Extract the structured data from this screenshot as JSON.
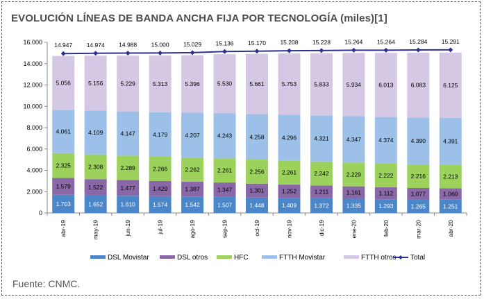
{
  "title": "EVOLUCIÓN LÍNEAS DE BANDA ANCHA FIJA POR TECNOLOGÍA (miles)[1]",
  "source": "Fuente: CNMC.",
  "chart_data": {
    "type": "bar",
    "stacked": true,
    "title": "EVOLUCIÓN LÍNEAS DE BANDA ANCHA FIJA POR TECNOLOGÍA (miles)[1]",
    "xlabel": "",
    "ylabel": "",
    "ylim": [
      0,
      16000
    ],
    "yticks": [
      0,
      2000,
      4000,
      6000,
      8000,
      10000,
      12000,
      14000,
      16000
    ],
    "ytick_labels": [
      "0",
      "2.000",
      "4.000",
      "6.000",
      "8.000",
      "10.000",
      "12.000",
      "14.000",
      "16.000"
    ],
    "grid": false,
    "legend_position": "bottom",
    "categories": [
      "abr-19",
      "may-19",
      "jun-19",
      "jul-19",
      "ago-19",
      "sep-19",
      "oct-19",
      "nov-19",
      "dic-19",
      "ene-20",
      "feb-20",
      "mar-20",
      "abr-20"
    ],
    "series": [
      {
        "name": "DSL Movistar",
        "color": "#4a86c8",
        "values": [
          1703,
          1652,
          1610,
          1574,
          1542,
          1507,
          1448,
          1409,
          1372,
          1335,
          1293,
          1265,
          1251
        ],
        "labels": [
          "1.703",
          "1.652",
          "1.610",
          "1.574",
          "1.542",
          "1.507",
          "1.448",
          "1.409",
          "1.372",
          "1.335",
          "1.293",
          "1.265",
          "1.251"
        ]
      },
      {
        "name": "DSL otros",
        "color": "#8a68a8",
        "values": [
          1579,
          1522,
          1477,
          1429,
          1387,
          1347,
          1301,
          1252,
          1211,
          1161,
          1112,
          1077,
          1060
        ],
        "labels": [
          "1.579",
          "1.522",
          "1.477",
          "1.429",
          "1.387",
          "1.347",
          "1.301",
          "1.252",
          "1.211",
          "1.161",
          "1.112",
          "1.077",
          "1.060"
        ]
      },
      {
        "name": "HFC",
        "color": "#9cd25c",
        "values": [
          2325,
          2308,
          2289,
          2266,
          2262,
          2261,
          2256,
          2261,
          2242,
          2229,
          2222,
          2216,
          2213
        ],
        "labels": [
          "2.325",
          "2.308",
          "2.289",
          "2.266",
          "2.262",
          "2.261",
          "2.256",
          "2.261",
          "2.242",
          "2.229",
          "2.222",
          "2.216",
          "2.213"
        ]
      },
      {
        "name": "FTTH Movistar",
        "color": "#9dc0e8",
        "values": [
          4061,
          4109,
          4147,
          4179,
          4207,
          4243,
          4258,
          4296,
          4321,
          4347,
          4374,
          4390,
          4391
        ],
        "labels": [
          "4.061",
          "4.109",
          "4.147",
          "4.179",
          "4.207",
          "4.243",
          "4.258",
          "4.296",
          "4.321",
          "4.347",
          "4.374",
          "4.390",
          "4.391"
        ]
      },
      {
        "name": "FTTH otros",
        "color": "#d5c8e4",
        "values": [
          5056,
          5156,
          5229,
          5313,
          5396,
          5530,
          5661,
          5753,
          5833,
          5934,
          6013,
          6083,
          6125
        ],
        "labels": [
          "5.056",
          "5.156",
          "5.229",
          "5.313",
          "5.396",
          "5.530",
          "5.661",
          "5.753",
          "5.833",
          "5.934",
          "6.013",
          "6.083",
          "6.125"
        ]
      }
    ],
    "line": {
      "name": "Total",
      "color": "#2e3192",
      "values": [
        14947,
        14974,
        14988,
        15000,
        15029,
        15136,
        15170,
        15208,
        15228,
        15264,
        15264,
        15284,
        15291
      ],
      "labels": [
        "14.947",
        "14.974",
        "14.988",
        "15.000",
        "15.029",
        "15.136",
        "15.170",
        "15.208",
        "15.228",
        "15.264",
        "15.264",
        "15.284",
        "15.291"
      ]
    }
  }
}
